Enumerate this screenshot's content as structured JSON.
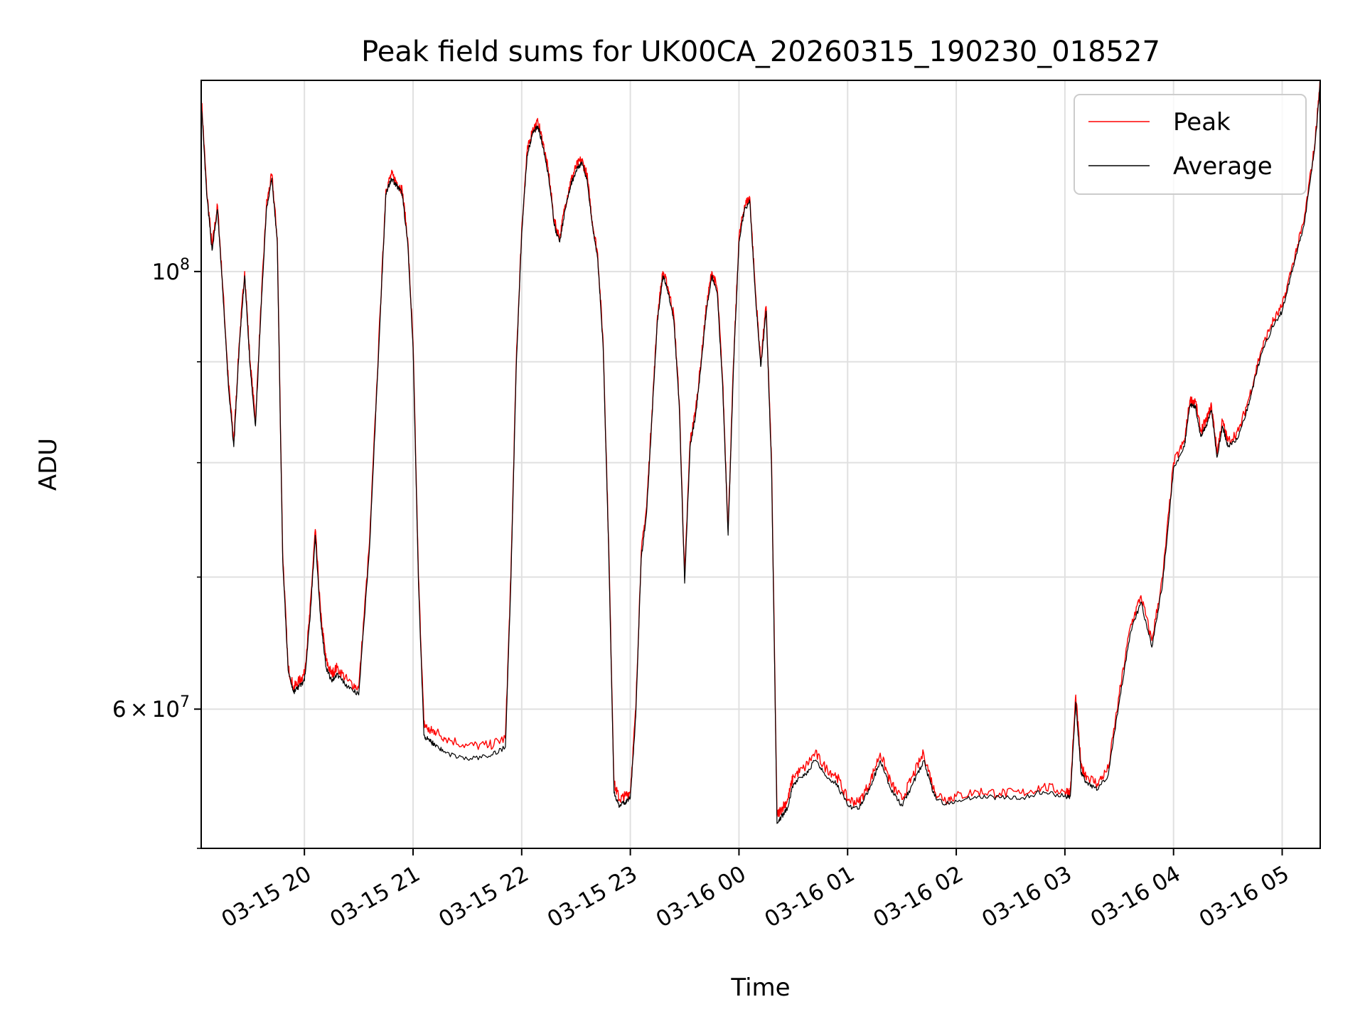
{
  "chart_data": {
    "type": "line",
    "title": "Peak field sums for UK00CA_20260315_190230_018527",
    "xlabel": "Time",
    "ylabel": "ADU",
    "yscale": "log",
    "ylim": [
      51000000,
      125000000
    ],
    "xlim_hours": [
      19.05,
      29.35
    ],
    "x_ticks": [
      {
        "value": 20,
        "label": "03-15 20"
      },
      {
        "value": 21,
        "label": "03-15 21"
      },
      {
        "value": 22,
        "label": "03-15 22"
      },
      {
        "value": 23,
        "label": "03-15 23"
      },
      {
        "value": 24,
        "label": "03-16 00"
      },
      {
        "value": 25,
        "label": "03-16 01"
      },
      {
        "value": 26,
        "label": "03-16 02"
      },
      {
        "value": 27,
        "label": "03-16 03"
      },
      {
        "value": 28,
        "label": "03-16 04"
      },
      {
        "value": 29,
        "label": "03-16 05"
      }
    ],
    "y_major_ticks": [
      {
        "value": 100000000,
        "base": "10",
        "exp": "8"
      },
      {
        "value": 60000000,
        "mant": "6",
        "times": "×",
        "base": "10",
        "exp": "7"
      }
    ],
    "y_minor_ticks": [
      51000000,
      70000000,
      80000000,
      90000000
    ],
    "grid": true,
    "legend_position": "upper right",
    "series": [
      {
        "name": "Peak",
        "color": "#ff0000",
        "x": [
          19.05,
          19.1,
          19.15,
          19.2,
          19.25,
          19.3,
          19.35,
          19.4,
          19.45,
          19.5,
          19.55,
          19.6,
          19.65,
          19.7,
          19.75,
          19.8,
          19.85,
          19.9,
          19.95,
          20.0,
          20.05,
          20.1,
          20.15,
          20.2,
          20.25,
          20.3,
          20.4,
          20.5,
          20.6,
          20.7,
          20.75,
          20.8,
          20.85,
          20.9,
          20.95,
          21.0,
          21.05,
          21.1,
          21.15,
          21.2,
          21.3,
          21.5,
          21.7,
          21.85,
          21.9,
          21.95,
          22.0,
          22.05,
          22.1,
          22.15,
          22.2,
          22.25,
          22.3,
          22.35,
          22.4,
          22.45,
          22.5,
          22.55,
          22.6,
          22.65,
          22.7,
          22.75,
          22.8,
          22.85,
          22.9,
          22.95,
          23.0,
          23.05,
          23.1,
          23.15,
          23.2,
          23.25,
          23.3,
          23.35,
          23.4,
          23.45,
          23.5,
          23.55,
          23.6,
          23.65,
          23.7,
          23.75,
          23.8,
          23.85,
          23.9,
          23.95,
          24.0,
          24.05,
          24.1,
          24.15,
          24.2,
          24.25,
          24.3,
          24.35,
          24.4,
          24.45,
          24.5,
          24.6,
          24.7,
          24.8,
          24.9,
          25.0,
          25.1,
          25.2,
          25.3,
          25.4,
          25.5,
          25.6,
          25.7,
          25.8,
          25.9,
          26.0,
          26.2,
          26.4,
          26.6,
          26.8,
          27.0,
          27.05,
          27.1,
          27.15,
          27.2,
          27.3,
          27.4,
          27.5,
          27.6,
          27.7,
          27.8,
          27.9,
          28.0,
          28.1,
          28.15,
          28.2,
          28.25,
          28.3,
          28.35,
          28.4,
          28.45,
          28.5,
          28.6,
          28.7,
          28.8,
          28.9,
          29.0,
          29.1,
          29.2,
          29.3,
          29.35
        ],
        "y": [
          123000000,
          110000000,
          103000000,
          108000000,
          98000000,
          88000000,
          82000000,
          92000000,
          100000000,
          90000000,
          84000000,
          96000000,
          108000000,
          112000000,
          104000000,
          72000000,
          63000000,
          61500000,
          62000000,
          62500000,
          67000000,
          74000000,
          67000000,
          63500000,
          62500000,
          63000000,
          62000000,
          61500000,
          73000000,
          96000000,
          110000000,
          112000000,
          111000000,
          110000000,
          104000000,
          92000000,
          70000000,
          59000000,
          58500000,
          58500000,
          58000000,
          57500000,
          57500000,
          58000000,
          70000000,
          90000000,
          105000000,
          115000000,
          118000000,
          119000000,
          116000000,
          112000000,
          106000000,
          104000000,
          108000000,
          111000000,
          113000000,
          114000000,
          112000000,
          106000000,
          102000000,
          92000000,
          73000000,
          55000000,
          54000000,
          54200000,
          54500000,
          60000000,
          72000000,
          76000000,
          85000000,
          95000000,
          100000000,
          98000000,
          95000000,
          86000000,
          70000000,
          82000000,
          85000000,
          90000000,
          96000000,
          100000000,
          98000000,
          88000000,
          74000000,
          90000000,
          104000000,
          108000000,
          109000000,
          98000000,
          90000000,
          96000000,
          80000000,
          53000000,
          53500000,
          54000000,
          55500000,
          56000000,
          57000000,
          56000000,
          55500000,
          54000000,
          53800000,
          55000000,
          57000000,
          55000000,
          54000000,
          55500000,
          57000000,
          54500000,
          54000000,
          54200000,
          54500000,
          54400000,
          54400000,
          54800000,
          54500000,
          54500000,
          61000000,
          56000000,
          55500000,
          55000000,
          56000000,
          61000000,
          66000000,
          68500000,
          65000000,
          70000000,
          80000000,
          82000000,
          86000000,
          86000000,
          83000000,
          84000000,
          85500000,
          81000000,
          84000000,
          82000000,
          83000000,
          86500000,
          91000000,
          94000000,
          96000000,
          101000000,
          106000000,
          116000000,
          125000000
        ],
        "noise": 0.012,
        "seed": 7
      },
      {
        "name": "Average",
        "color": "#000000",
        "x": [
          19.05,
          19.1,
          19.15,
          19.2,
          19.25,
          19.3,
          19.35,
          19.4,
          19.45,
          19.5,
          19.55,
          19.6,
          19.65,
          19.7,
          19.75,
          19.8,
          19.85,
          19.9,
          19.95,
          20.0,
          20.05,
          20.1,
          20.15,
          20.2,
          20.25,
          20.3,
          20.4,
          20.5,
          20.6,
          20.7,
          20.75,
          20.8,
          20.85,
          20.9,
          20.95,
          21.0,
          21.05,
          21.1,
          21.15,
          21.2,
          21.3,
          21.5,
          21.7,
          21.85,
          21.9,
          21.95,
          22.0,
          22.05,
          22.1,
          22.15,
          22.2,
          22.25,
          22.3,
          22.35,
          22.4,
          22.45,
          22.5,
          22.55,
          22.6,
          22.65,
          22.7,
          22.75,
          22.8,
          22.85,
          22.9,
          22.95,
          23.0,
          23.05,
          23.1,
          23.15,
          23.2,
          23.25,
          23.3,
          23.35,
          23.4,
          23.45,
          23.5,
          23.55,
          23.6,
          23.65,
          23.7,
          23.75,
          23.8,
          23.85,
          23.9,
          23.95,
          24.0,
          24.05,
          24.1,
          24.15,
          24.2,
          24.25,
          24.3,
          24.35,
          24.4,
          24.45,
          24.5,
          24.6,
          24.7,
          24.8,
          24.9,
          25.0,
          25.1,
          25.2,
          25.3,
          25.4,
          25.5,
          25.6,
          25.7,
          25.8,
          25.9,
          26.0,
          26.2,
          26.4,
          26.6,
          26.8,
          27.0,
          27.05,
          27.1,
          27.15,
          27.2,
          27.3,
          27.4,
          27.5,
          27.6,
          27.7,
          27.8,
          27.9,
          28.0,
          28.1,
          28.15,
          28.2,
          28.25,
          28.3,
          28.35,
          28.4,
          28.45,
          28.5,
          28.6,
          28.7,
          28.8,
          28.9,
          29.0,
          29.1,
          29.2,
          29.3,
          29.35
        ],
        "y": [
          122000000,
          109500000,
          102500000,
          107500000,
          97500000,
          87500000,
          81500000,
          91500000,
          99500000,
          89500000,
          83500000,
          95500000,
          107500000,
          111500000,
          103500000,
          71500000,
          62800000,
          61200000,
          61600000,
          62000000,
          66500000,
          73500000,
          66500000,
          63000000,
          62000000,
          62500000,
          61600000,
          61000000,
          72500000,
          95500000,
          109500000,
          111500000,
          110500000,
          109500000,
          103500000,
          91500000,
          69500000,
          58200000,
          57800000,
          57600000,
          57000000,
          56600000,
          56800000,
          57400000,
          69500000,
          89500000,
          104500000,
          114500000,
          117500000,
          118500000,
          115500000,
          111500000,
          105500000,
          103500000,
          107500000,
          110500000,
          112500000,
          113500000,
          111500000,
          105500000,
          101500000,
          91500000,
          72500000,
          54400000,
          53600000,
          53800000,
          54100000,
          59500000,
          71500000,
          75500000,
          84500000,
          94500000,
          99500000,
          97500000,
          94500000,
          85500000,
          69500000,
          81500000,
          84500000,
          89500000,
          95500000,
          99500000,
          97500000,
          87500000,
          73500000,
          89500000,
          103500000,
          107500000,
          108500000,
          97500000,
          89500000,
          95500000,
          79500000,
          52500000,
          53000000,
          53500000,
          55000000,
          55500000,
          56500000,
          55500000,
          55000000,
          53600000,
          53400000,
          54600000,
          56500000,
          54600000,
          53600000,
          55000000,
          56500000,
          54200000,
          53700000,
          53900000,
          54200000,
          54100000,
          54100000,
          54500000,
          54200000,
          54200000,
          60500000,
          55600000,
          55100000,
          54600000,
          55600000,
          60500000,
          65500000,
          68000000,
          64500000,
          69500000,
          79500000,
          81500000,
          85500000,
          85500000,
          82500000,
          83500000,
          85000000,
          80500000,
          83500000,
          81500000,
          82500000,
          86000000,
          90500000,
          93500000,
          95500000,
          100500000,
          105500000,
          115500000,
          124500000
        ],
        "noise": 0.006,
        "seed": 13
      }
    ]
  }
}
